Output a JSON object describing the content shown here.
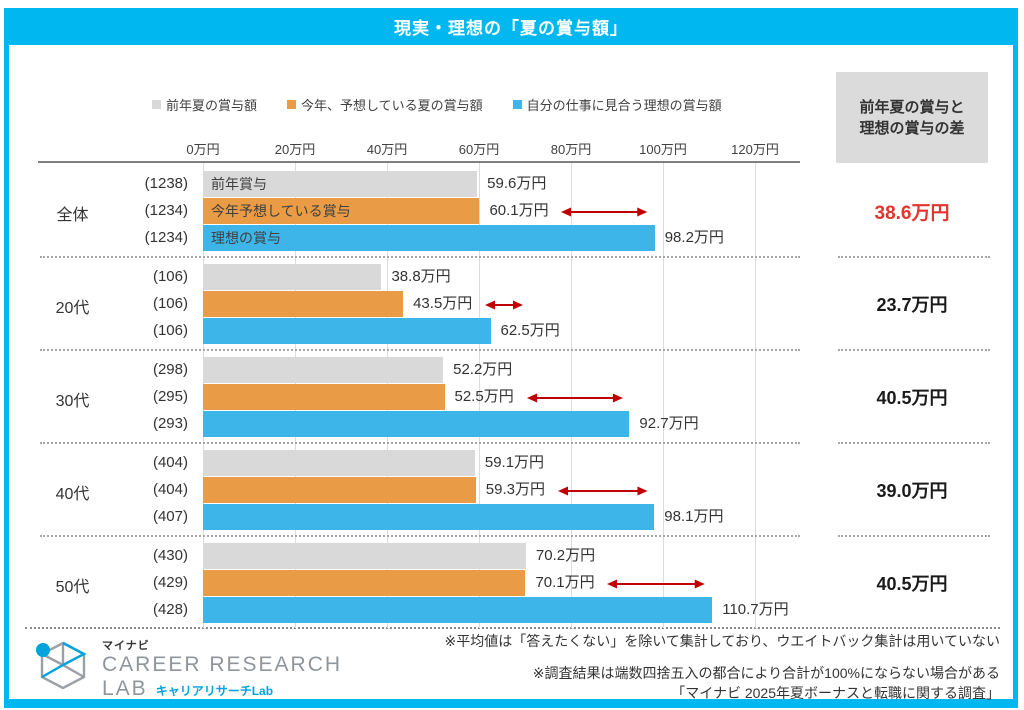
{
  "header": {
    "title": "現実・理想の「夏の賞与額」"
  },
  "colors": {
    "frame": "#00B7EF",
    "series": [
      "#D9D9D9",
      "#E99B45",
      "#3EB5E8"
    ],
    "arrow": "#C00000",
    "diff_highlight": "#E0362E",
    "diff_normal": "#1a1a1a"
  },
  "chart_data": {
    "type": "bar",
    "orientation": "horizontal",
    "title": "現実・理想の「夏の賞与額」",
    "unit": "万円",
    "categories": [
      "全体",
      "20代",
      "30代",
      "40代",
      "50代"
    ],
    "sample_sizes": [
      [
        1238,
        1234,
        1234
      ],
      [
        106,
        106,
        106
      ],
      [
        298,
        295,
        293
      ],
      [
        404,
        404,
        407
      ],
      [
        430,
        429,
        428
      ]
    ],
    "series": [
      {
        "name": "前年夏の賞与額",
        "inline_label": "前年賞与",
        "values": [
          59.6,
          38.8,
          52.2,
          59.1,
          70.2
        ]
      },
      {
        "name": "今年、予想している夏の賞与額",
        "inline_label": "今年予想している賞与",
        "values": [
          60.1,
          43.5,
          52.5,
          59.3,
          70.1
        ]
      },
      {
        "name": "自分の仕事に見合う理想の賞与額",
        "inline_label": "理想の賞与",
        "values": [
          98.2,
          62.5,
          92.7,
          98.1,
          110.7
        ]
      }
    ],
    "x_axis": {
      "ticks": [
        0,
        20,
        40,
        60,
        80,
        100,
        120
      ],
      "tick_suffix": "万円",
      "max": 130,
      "grid": true
    },
    "diff_column": {
      "header_lines": [
        "前年夏の賞与と",
        "理想の賞与の差"
      ],
      "values": [
        38.6,
        23.7,
        40.5,
        39.0,
        40.5
      ],
      "highlight_index": 0
    },
    "legend_position": "top"
  },
  "footer": {
    "note1": "※平均値は「答えたくない」を除いて集計しており、ウエイトバック集計は用いていない",
    "note2": "※調査結果は端数四捨五入の都合により合計が100%にならない場合がある",
    "note3": "「マイナビ 2025年夏ボーナスと転職に関する調査」",
    "logo": {
      "brand_small": "マイナビ",
      "line1": "CAREER RESEARCH",
      "line2": "LAB",
      "sub": "キャリアリサーチLab"
    }
  }
}
